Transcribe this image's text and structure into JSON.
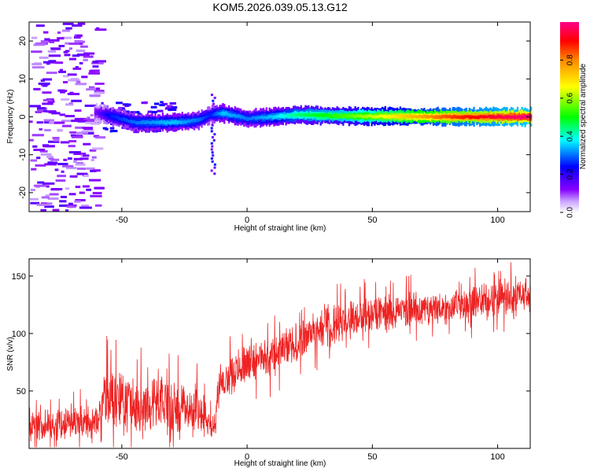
{
  "chart_data": [
    {
      "type": "heatmap",
      "title": "KOM5.2026.039.05.13.G12",
      "xlabel": "Height of straight line (km)",
      "ylabel": "Frequency (Hz)",
      "xlim": [
        -87,
        113
      ],
      "ylim": [
        -25,
        25
      ],
      "xticks": [
        -50,
        0,
        50,
        100
      ],
      "yticks": [
        -20,
        -10,
        0,
        10,
        20
      ],
      "colorbar": {
        "label": "Normalized spectral amplitude",
        "range": [
          0,
          1
        ],
        "ticks": [
          "0.0",
          "0.2",
          "0.4",
          "0.6",
          "0.8"
        ],
        "colors": [
          "#ffffff",
          "#8800ff",
          "#0000ff",
          "#00ffff",
          "#00ff00",
          "#ffff00",
          "#ff8800",
          "#ff0088"
        ]
      },
      "ridge": {
        "description_points": [
          {
            "x": -60,
            "y": 1.0,
            "amp": 0.15
          },
          {
            "x": -55,
            "y": 0.3,
            "amp": 0.25
          },
          {
            "x": -45,
            "y": -1.5,
            "amp": 0.3
          },
          {
            "x": -30,
            "y": -1.5,
            "amp": 0.35
          },
          {
            "x": -20,
            "y": -1.0,
            "amp": 0.3
          },
          {
            "x": -15,
            "y": 0.5,
            "amp": 0.25
          },
          {
            "x": -10,
            "y": 1.0,
            "amp": 0.35
          },
          {
            "x": 0,
            "y": -0.5,
            "amp": 0.3
          },
          {
            "x": 10,
            "y": 0.0,
            "amp": 0.35
          },
          {
            "x": 20,
            "y": 0.5,
            "amp": 0.45
          },
          {
            "x": 40,
            "y": 0.2,
            "amp": 0.55
          },
          {
            "x": 60,
            "y": 0.1,
            "amp": 0.7
          },
          {
            "x": 80,
            "y": 0.0,
            "amp": 0.85
          },
          {
            "x": 100,
            "y": 0.0,
            "amp": 0.95
          },
          {
            "x": 113,
            "y": 0.0,
            "amp": 1.0
          }
        ]
      }
    },
    {
      "type": "line",
      "xlabel": "Height of straight line (km)",
      "ylabel": "SNR (v/v)",
      "xlim": [
        -87,
        113
      ],
      "ylim": [
        0,
        165
      ],
      "xticks": [
        -50,
        0,
        50,
        100
      ],
      "yticks": [
        50,
        100,
        150
      ],
      "color": "#ee2222",
      "trend": [
        {
          "x": -87,
          "lo": 5,
          "hi": 35
        },
        {
          "x": -60,
          "lo": 5,
          "hi": 40
        },
        {
          "x": -57,
          "lo": 15,
          "hi": 75
        },
        {
          "x": -40,
          "lo": 10,
          "hi": 65
        },
        {
          "x": -20,
          "lo": 10,
          "hi": 60
        },
        {
          "x": -13,
          "lo": 5,
          "hi": 35
        },
        {
          "x": -10,
          "lo": 40,
          "hi": 80
        },
        {
          "x": 0,
          "lo": 55,
          "hi": 95
        },
        {
          "x": 10,
          "lo": 60,
          "hi": 100
        },
        {
          "x": 30,
          "lo": 85,
          "hi": 125
        },
        {
          "x": 50,
          "lo": 100,
          "hi": 135
        },
        {
          "x": 80,
          "lo": 105,
          "hi": 140
        },
        {
          "x": 113,
          "lo": 115,
          "hi": 155
        }
      ]
    }
  ]
}
